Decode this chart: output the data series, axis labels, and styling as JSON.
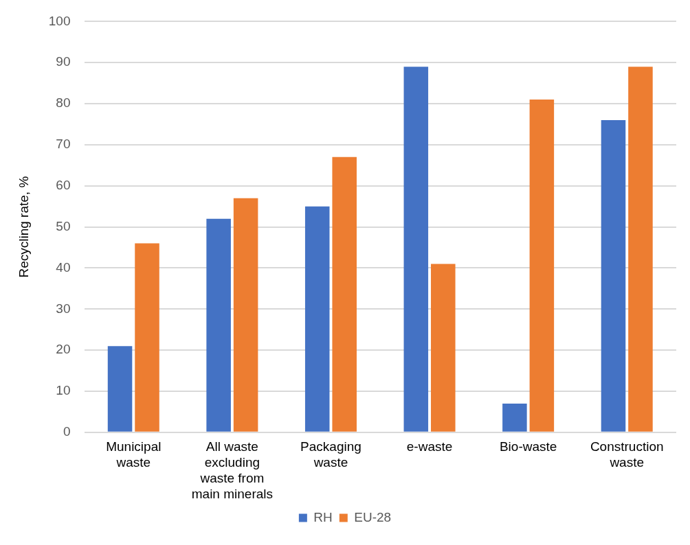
{
  "chart_data": {
    "type": "bar",
    "ylabel": "Recycling rate, %",
    "categories": [
      "Municipal waste",
      "All waste excluding waste from main minerals",
      "Packaging waste",
      "e-waste",
      "Bio-waste",
      "Construction waste"
    ],
    "series": [
      {
        "name": "RH",
        "color": "#4472c4",
        "values": [
          21,
          52,
          55,
          89,
          7,
          76
        ]
      },
      {
        "name": "EU-28",
        "color": "#ed7d31",
        "values": [
          46,
          57,
          67,
          41,
          81,
          89
        ]
      }
    ],
    "ylim": [
      0,
      100
    ],
    "yticks": [
      0,
      10,
      20,
      30,
      40,
      50,
      60,
      70,
      80,
      90,
      100
    ],
    "grid": "y",
    "legend": "bottom"
  }
}
